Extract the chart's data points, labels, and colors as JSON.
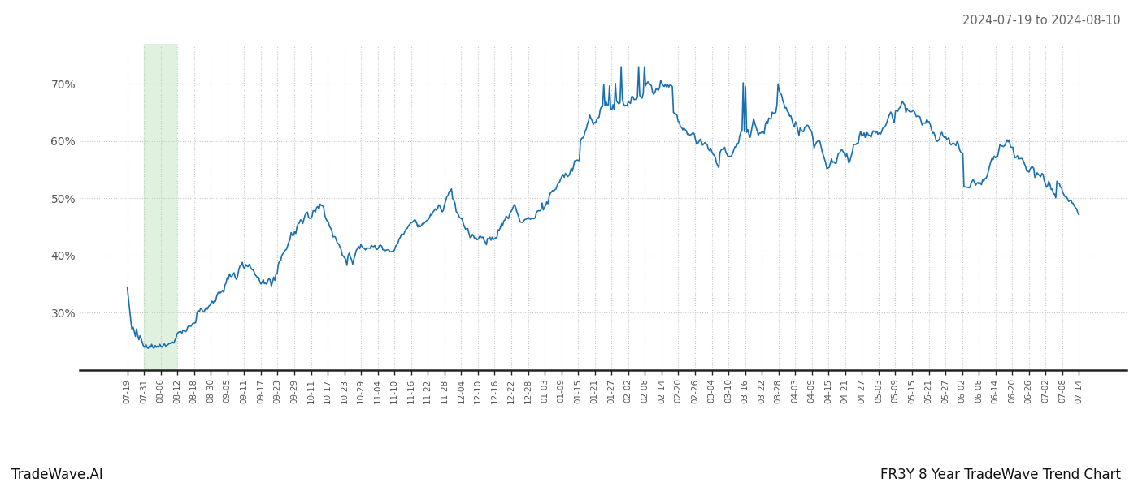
{
  "title_right": "2024-07-19 to 2024-08-10",
  "footer_left": "TradeWave.AI",
  "footer_right": "FR3Y 8 Year TradeWave Trend Chart",
  "line_color": "#1a6faf",
  "line_width": 1.2,
  "bg_color": "#ffffff",
  "grid_color": "#c8c8c8",
  "highlight_color": "#d4ecd4",
  "highlight_alpha": 0.7,
  "ylim": [
    20,
    77
  ],
  "yticks": [
    30,
    40,
    50,
    60,
    70
  ],
  "x_labels": [
    "07-19",
    "07-31",
    "08-06",
    "08-12",
    "08-18",
    "08-30",
    "09-05",
    "09-11",
    "09-17",
    "09-23",
    "09-29",
    "10-11",
    "10-17",
    "10-23",
    "10-29",
    "11-04",
    "11-10",
    "11-16",
    "11-22",
    "11-28",
    "12-04",
    "12-10",
    "12-16",
    "12-22",
    "12-28",
    "01-03",
    "01-09",
    "01-15",
    "01-21",
    "01-27",
    "02-02",
    "02-08",
    "02-14",
    "02-20",
    "02-26",
    "03-04",
    "03-10",
    "03-16",
    "03-22",
    "03-28",
    "04-03",
    "04-09",
    "04-15",
    "04-21",
    "04-27",
    "05-03",
    "05-09",
    "05-15",
    "05-21",
    "05-27",
    "06-02",
    "06-08",
    "06-14",
    "06-20",
    "06-26",
    "07-02",
    "07-08",
    "07-14"
  ]
}
